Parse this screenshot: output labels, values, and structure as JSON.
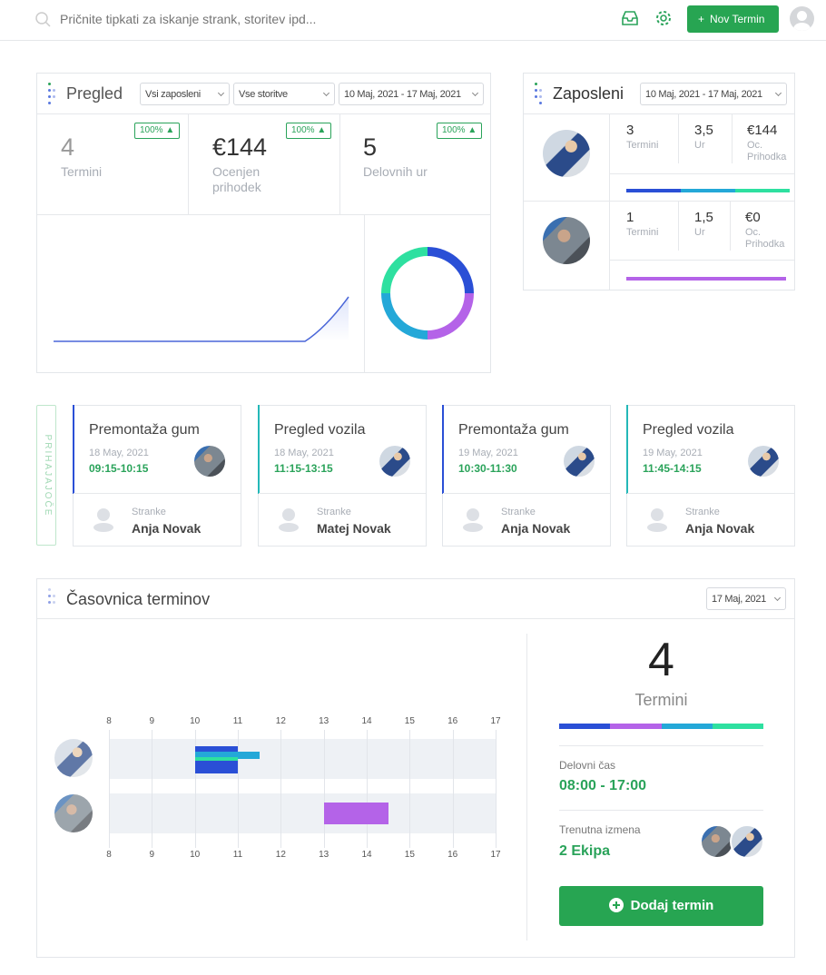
{
  "topbar": {
    "search_placeholder": "Pričnite tipkati za iskanje strank, storitev ipd...",
    "new_button": "Nov Termin",
    "new_icon": "+"
  },
  "pregled": {
    "title": "Pregled",
    "filter_employees": "Vsi zaposleni",
    "filter_services": "Vse storitve",
    "date_range": "10 Maj, 2021 - 17 Maj, 2021",
    "stats": [
      {
        "value": "4",
        "label": "Termini",
        "badge": "100% ▲"
      },
      {
        "value": "€144",
        "label": "Ocenjen prihodek",
        "badge": "100% ▲"
      },
      {
        "value": "5",
        "label": "Delovnih ur",
        "badge": "100% ▲"
      }
    ],
    "donut": [
      {
        "color": "#2a4fd6",
        "value": 1
      },
      {
        "color": "#b463e8",
        "value": 1
      },
      {
        "color": "#24a8d8",
        "value": 1
      },
      {
        "color": "#2ee0a0",
        "value": 1
      }
    ]
  },
  "zaposleni": {
    "title": "Zaposleni",
    "date_range": "10 Maj, 2021 - 17 Maj, 2021",
    "rows": [
      {
        "termini": "3",
        "ur": "3,5",
        "prihodek": "€144",
        "labels": [
          "Termini",
          "Ur",
          "Oc. Prihodka"
        ],
        "bar": [
          "#2a4fd6",
          "#24a8d8",
          "#2ee0a0"
        ]
      },
      {
        "termini": "1",
        "ur": "1,5",
        "prihodek": "€0",
        "labels": [
          "Termini",
          "Ur",
          "Oc. Prihodka"
        ],
        "bar": [
          "#b463e8"
        ]
      }
    ]
  },
  "upcoming": {
    "label": "PRIHAJAJOČE",
    "customer_label": "Stranke",
    "cards": [
      {
        "title": "Premontaža gum",
        "date": "18 May, 2021",
        "time": "09:15-10:15",
        "customer": "Anja Novak",
        "color": "#2a4fd6"
      },
      {
        "title": "Pregled vozila",
        "date": "18 May, 2021",
        "time": "11:15-13:15",
        "customer": "Matej Novak",
        "color": "#24b8b8"
      },
      {
        "title": "Premontaža gum",
        "date": "19 May, 2021",
        "time": "10:30-11:30",
        "customer": "Anja Novak",
        "color": "#2a4fd6"
      },
      {
        "title": "Pregled vozila",
        "date": "19 May, 2021",
        "time": "11:45-14:15",
        "customer": "Anja Novak",
        "color": "#24b8b8"
      }
    ]
  },
  "timeline": {
    "title": "Časovnica terminov",
    "date": "17 Maj, 2021",
    "hours": [
      "8",
      "9",
      "10",
      "11",
      "12",
      "13",
      "14",
      "15",
      "16",
      "17"
    ],
    "bars": [
      {
        "row": 0,
        "start": 10,
        "end": 11,
        "color": "#2a4fd6",
        "lane": "outer"
      },
      {
        "row": 0,
        "start": 10,
        "end": 11.5,
        "color": "#24a8d8",
        "lane": "mid"
      },
      {
        "row": 0,
        "start": 10,
        "end": 11,
        "color": "#2ee0a0",
        "lane": "inner"
      },
      {
        "row": 1,
        "start": 13,
        "end": 14.5,
        "color": "#b463e8",
        "lane": "full"
      }
    ],
    "summary": {
      "count": "4",
      "count_label": "Termini",
      "colors": [
        "#2a4fd6",
        "#b463e8",
        "#24a8d8",
        "#2ee0a0"
      ],
      "work_label": "Delovni čas",
      "work_value": "08:00 - 17:00",
      "shift_label": "Trenutna izmena",
      "shift_value": "2 Ekipa",
      "add_button": "Dodaj termin"
    }
  }
}
